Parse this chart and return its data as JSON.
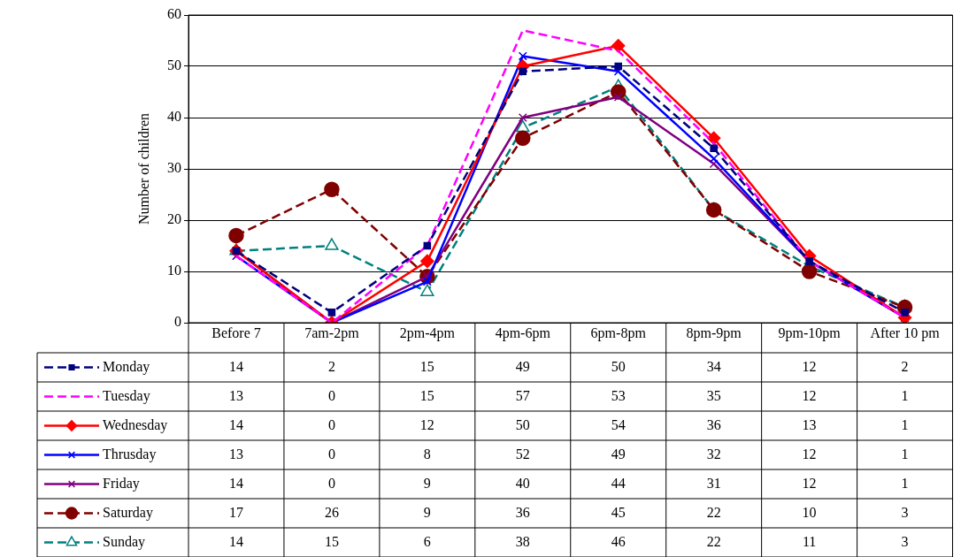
{
  "chart_data": {
    "type": "line",
    "ylabel": "Number of children",
    "categories": [
      "Before 7",
      "7am-2pm",
      "2pm-4pm",
      "4pm-6pm",
      "6pm-8pm",
      "8pm-9pm",
      "9pm-10pm",
      "After 10 pm"
    ],
    "series": [
      {
        "name": "Monday",
        "color": "#000080",
        "marker": "square",
        "line_style": "dashed",
        "values": [
          14,
          2,
          15,
          49,
          50,
          34,
          12,
          2
        ]
      },
      {
        "name": "Tuesday",
        "color": "#ff00ff",
        "marker": "none",
        "line_style": "dashed",
        "values": [
          13,
          0,
          15,
          57,
          53,
          35,
          12,
          1
        ]
      },
      {
        "name": "Wednesday",
        "color": "#ff0000",
        "marker": "diamond",
        "line_style": "solid",
        "values": [
          14,
          0,
          12,
          50,
          54,
          36,
          13,
          1
        ]
      },
      {
        "name": "Thrusday",
        "color": "#0000ff",
        "marker": "cross",
        "line_style": "solid",
        "values": [
          13,
          0,
          8,
          52,
          49,
          32,
          12,
          1
        ]
      },
      {
        "name": "Friday",
        "color": "#800080",
        "marker": "cross",
        "line_style": "solid",
        "values": [
          14,
          0,
          9,
          40,
          44,
          31,
          12,
          1
        ]
      },
      {
        "name": "Saturday",
        "color": "#800000",
        "marker": "circle",
        "line_style": "dashed",
        "values": [
          17,
          26,
          9,
          36,
          45,
          22,
          10,
          3
        ]
      },
      {
        "name": "Sunday",
        "color": "#008080",
        "marker": "triangle",
        "line_style": "dashed",
        "values": [
          14,
          15,
          6,
          38,
          46,
          22,
          11,
          3
        ]
      }
    ],
    "ylim": [
      0,
      60
    ],
    "yticks": [
      0,
      10,
      20,
      30,
      40,
      50,
      60
    ],
    "grid": "y",
    "legend": "bottom",
    "data_labels": true
  }
}
